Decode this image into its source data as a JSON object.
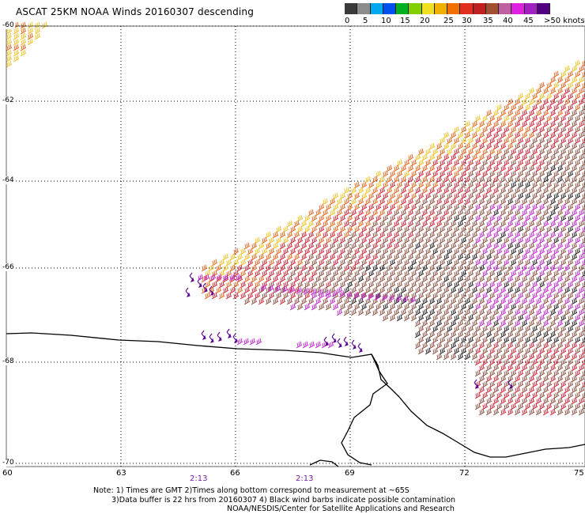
{
  "title": "ASCAT 25KM NOAA Winds 20160307 descending",
  "colorbar": {
    "colors": [
      "#3a3a3a",
      "#8c8c8c",
      "#00a8f0",
      "#0050f0",
      "#00b020",
      "#80d000",
      "#f0e020",
      "#f0b000",
      "#f07000",
      "#e03020",
      "#c02020",
      "#a05030",
      "#c060a0",
      "#e020e0",
      "#a020c0",
      "#500080"
    ],
    "labels": [
      "0",
      "5",
      "10",
      "15",
      "20",
      "25",
      "30",
      "35",
      "40",
      "45",
      ">50 knots"
    ]
  },
  "axes": {
    "lat_labels": [
      "-60",
      "-62",
      "-64",
      "-66",
      "-68",
      "-70"
    ],
    "lon_labels": [
      "60",
      "63",
      "66",
      "69",
      "72",
      "75"
    ]
  },
  "time_labels": [
    "2:13",
    "2:13"
  ],
  "notes": [
    "Note: 1) Times are GMT 2)Times along bottom correspond to measurement at ~65S",
    "3)Data buffer is 22 hrs from 20160307 4) Black wind barbs indicate possible contamination",
    "NOAA/NESDIS/Center for Satellite Applications and Research"
  ],
  "colors": {
    "yellow": "#f0c020",
    "orange": "#e86018",
    "red": "#d02030",
    "brown": "#8a4a3a",
    "magenta": "#c020d0",
    "purple": "#5a0a90",
    "black": "#201818"
  }
}
